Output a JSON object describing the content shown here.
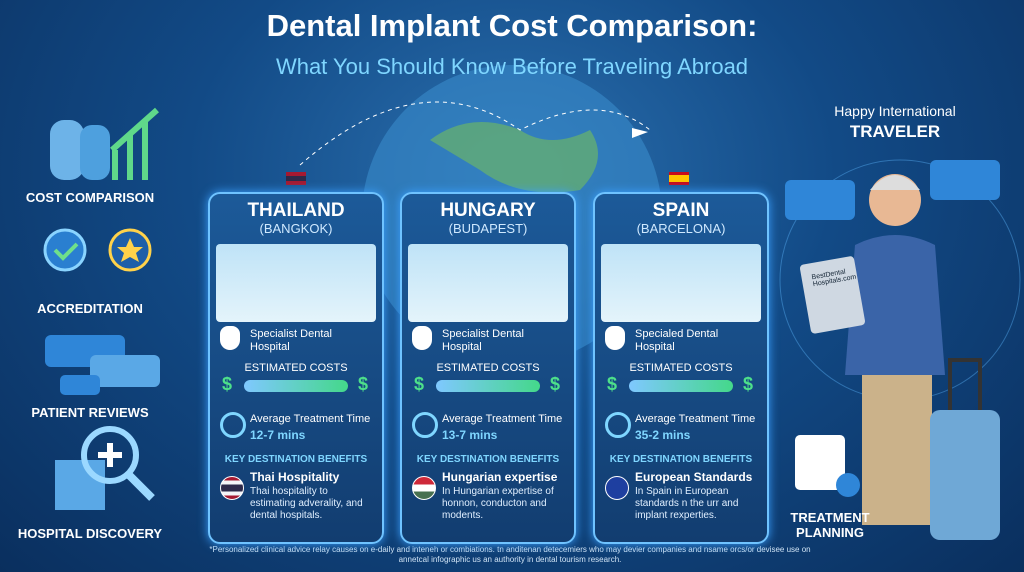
{
  "header": {
    "title": "Dental Implant Cost Comparison:",
    "subtitle": "What You Should Know Before Traveling Abroad"
  },
  "sidebar": {
    "items": [
      "COST COMPARISON",
      "ACCREDITATION",
      "PATIENT REVIEWS",
      "HOSPITAL DISCOVERY"
    ]
  },
  "traveler": {
    "line1": "Happy International",
    "line2": "TRAVELER",
    "tablet": "BestDental Hospitals.com",
    "planning": "TREATMENT PLANNING"
  },
  "cards": [
    {
      "country": "THAILAND",
      "city": "(BANGKOK)",
      "hospital": "Specialist Dental Hospital",
      "cost_label": "ESTIMATED COSTS",
      "cost_low": "$",
      "cost_high": "$",
      "time_label": "Average Treatment Time",
      "time": "12-7 mins",
      "benefits_label": "KEY DESTINATION BENEFITS",
      "benefit_title": "Thai Hospitality",
      "benefit_text": "Thai hospitality to estimating adverality, and dental hospitals."
    },
    {
      "country": "HUNGARY",
      "city": "(BUDAPEST)",
      "hospital": "Specialist Dental Hospital",
      "cost_label": "ESTIMATED COSTS",
      "cost_low": "$",
      "cost_high": "$",
      "time_label": "Average Treatment Time",
      "time": "13-7 mins",
      "benefits_label": "KEY DESTINATION BENEFITS",
      "benefit_title": "Hungarian expertise",
      "benefit_text": "In Hungarian expertise of honnon, conducton and modents."
    },
    {
      "country": "SPAIN",
      "city": "(BARCELONA)",
      "hospital": "Specialed Dental Hospital",
      "cost_label": "ESTIMATED COSTS",
      "cost_low": "$",
      "cost_high": "$",
      "time_label": "Average Treatment Time",
      "time": "35-2 mins",
      "benefits_label": "KEY DESTINATION BENEFITS",
      "benefit_title": "European Standards",
      "benefit_text": "In Spain in European standards n the urr and implant rexperties."
    }
  ],
  "footer": {
    "note": "*Personalized clinical advice relay causes on e-daily and inteneh or combiations. tn anditenan detecemiers who may devier companies and nsame orcs/or devisee use on annetcal infographic us an authority in dental tourism research."
  }
}
